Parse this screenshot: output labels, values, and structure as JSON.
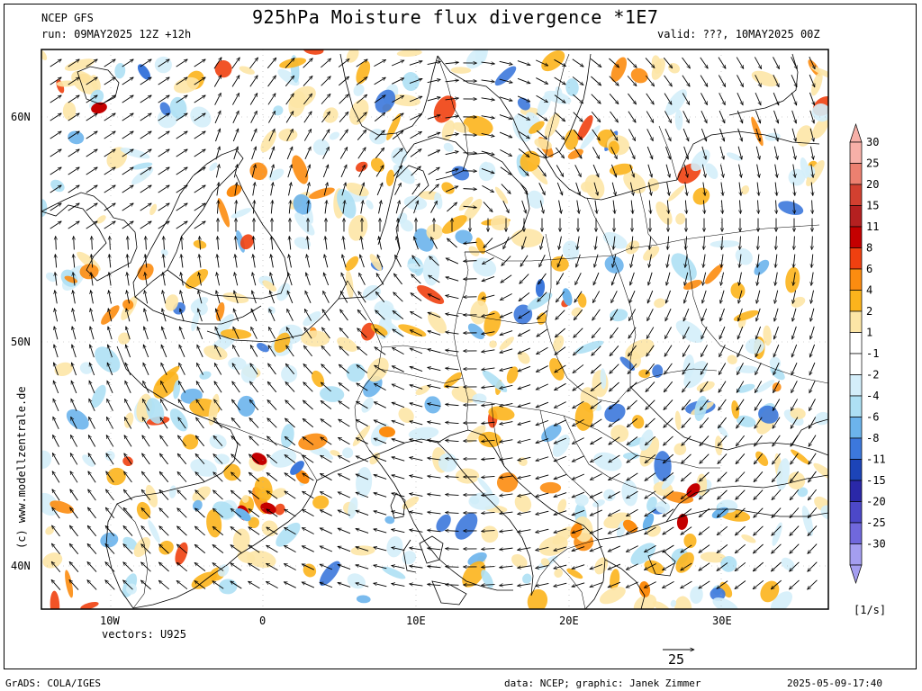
{
  "header": {
    "model": "NCEP GFS",
    "title": "925hPa Moisture flux divergence *1E7",
    "run": "run: 09MAY2025 12Z +12h",
    "valid": "valid: ???, 10MAY2025 00Z"
  },
  "side_credit": "(c) www.modellzentrale.de",
  "map": {
    "lat_ticks": [
      "60N",
      "50N",
      "40N"
    ],
    "lon_ticks": [
      "10W",
      "0",
      "10E",
      "20E",
      "30E"
    ],
    "vectors_label": "vectors: U925",
    "reference_vector": "25",
    "wind_pattern": "clockwise-high-over-central-europe"
  },
  "colorbar": {
    "labels": [
      "30",
      "25",
      "20",
      "15",
      "11",
      "8",
      "6",
      "4",
      "2",
      "1",
      "-1",
      "-2",
      "-4",
      "-6",
      "-8",
      "-11",
      "-15",
      "-20",
      "-25",
      "-30"
    ],
    "colors": [
      "#f7b0a8",
      "#ec8070",
      "#d24030",
      "#b52020",
      "#c40000",
      "#f04010",
      "#fc8c10",
      "#fcb41c",
      "#fde6a6",
      "#ffffff",
      "#ffffff",
      "#d4eefa",
      "#aee0f4",
      "#6cb4ec",
      "#3c78dc",
      "#1c44b8",
      "#2a28a8",
      "#4c48c8",
      "#7068dc",
      "#a49ef0"
    ],
    "units": "[1/s]"
  },
  "footer": {
    "left": "GrADS: COLA/IGES",
    "middle": "data: NCEP; graphic: Janek Zimmer",
    "right": "2025-05-09-17:40"
  }
}
